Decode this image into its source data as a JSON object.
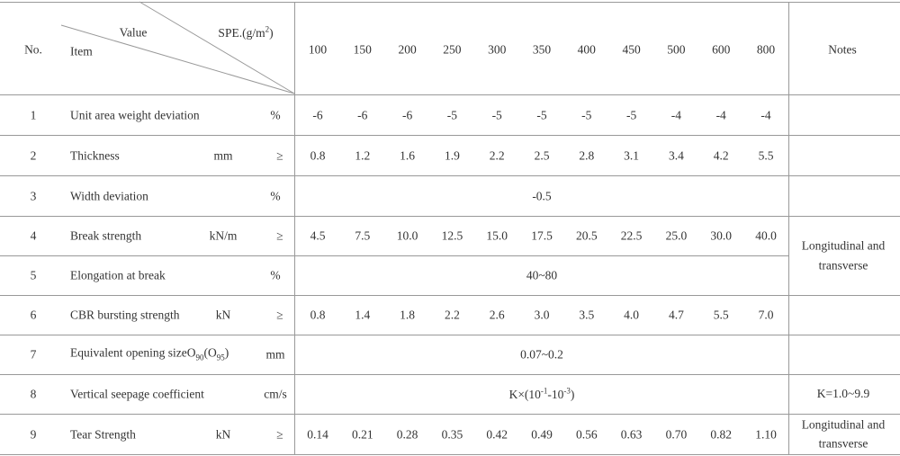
{
  "header": {
    "no": "No.",
    "value": "Value",
    "item": "Item",
    "spe": [
      "SPE.(g/m",
      {
        "text": "2",
        "pos": "sup"
      },
      ")"
    ],
    "specs": [
      "100",
      "150",
      "200",
      "250",
      "300",
      "350",
      "400",
      "450",
      "500",
      "600",
      "800"
    ],
    "notes": "Notes"
  },
  "rows": [
    {
      "no": "1",
      "item": "Unit area weight deviation",
      "unit": "%",
      "values": [
        "-6",
        "-6",
        "-6",
        "-5",
        "-5",
        "-5",
        "-5",
        "-5",
        "-4",
        "-4",
        "-4"
      ]
    },
    {
      "no": "2",
      "item": "Thickness",
      "unit": "mm",
      "sym": "≥",
      "values": [
        "0.8",
        "1.2",
        "1.6",
        "1.9",
        "2.2",
        "2.5",
        "2.8",
        "3.1",
        "3.4",
        "4.2",
        "5.5"
      ]
    },
    {
      "no": "3",
      "item": "Width deviation",
      "unit": "%",
      "span": "-0.5"
    },
    {
      "no": "4",
      "item": "Break strength",
      "unit": "kN/m",
      "sym": "≥",
      "values": [
        "4.5",
        "7.5",
        "10.0",
        "12.5",
        "15.0",
        "17.5",
        "20.5",
        "22.5",
        "25.0",
        "30.0",
        "40.0"
      ],
      "note": "Longitudinal and transverse"
    },
    {
      "no": "5",
      "item": "Elongation at break",
      "unit": "%",
      "span": "40~80"
    },
    {
      "no": "6",
      "item": "CBR bursting strength",
      "unit": "kN",
      "sym": "≥",
      "values": [
        "0.8",
        "1.4",
        "1.8",
        "2.2",
        "2.6",
        "3.0",
        "3.5",
        "4.0",
        "4.7",
        "5.5",
        "7.0"
      ]
    },
    {
      "no": "7",
      "item": [
        "Equivalent opening size",
        "O",
        {
          "text": "90",
          "pos": "sub"
        },
        "(O",
        {
          "text": "95",
          "pos": "sub"
        },
        ")"
      ],
      "unit": "mm",
      "span": "0.07~0.2"
    },
    {
      "no": "8",
      "item": "Vertical seepage coefficient",
      "unit": "cm/s",
      "span": [
        "K×(10",
        {
          "text": "-1",
          "pos": "sup"
        },
        "-10",
        {
          "text": "-3",
          "pos": "sup"
        },
        ")"
      ],
      "note": "K=1.0~9.9"
    },
    {
      "no": "9",
      "item": "Tear Strength",
      "unit": "kN",
      "sym": "≥",
      "values": [
        "0.14",
        "0.21",
        "0.28",
        "0.35",
        "0.42",
        "0.49",
        "0.56",
        "0.63",
        "0.70",
        "0.82",
        "1.10"
      ],
      "note": "Longitudinal and transverse"
    }
  ]
}
